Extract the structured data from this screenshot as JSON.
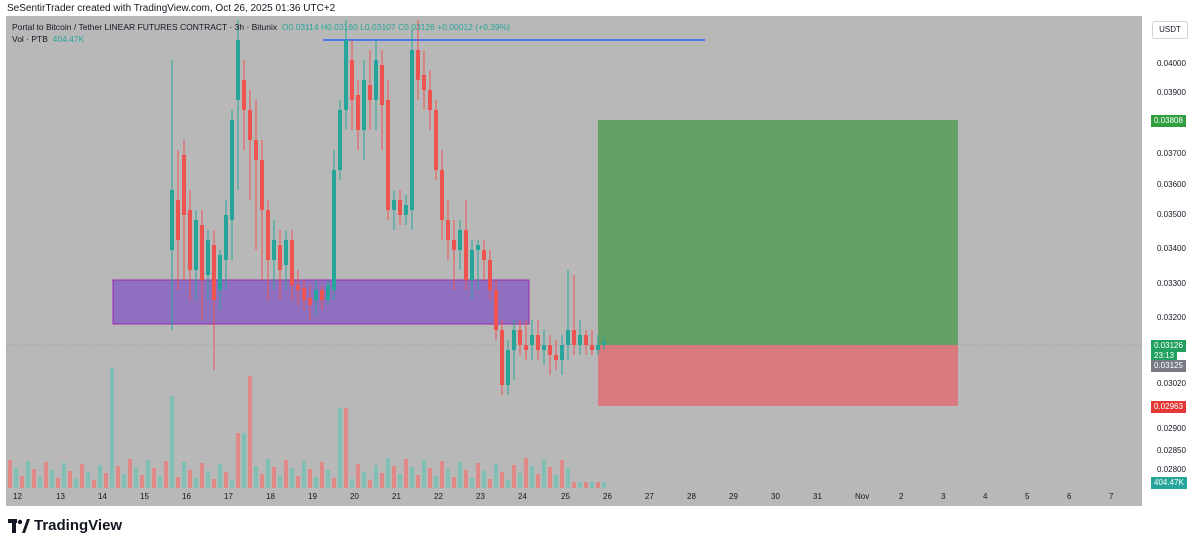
{
  "header": {
    "caption": "SeSentirTrader created with TradingView.com, Oct 26, 2025 01:36 UTC+2"
  },
  "legend": {
    "symbol_line": "Portal to Bitcoin / Tether LINEAR FUTURES CONTRACT · 3h · Bitunix",
    "ohlc": "O0.03114  H0.03160  L0.03107  C0.03126  +0.00012 (+0.39%)",
    "volume_label": "Vol · PTB",
    "volume_value": "404.47K"
  },
  "currency_button": "USDT",
  "price_axis": {
    "ticks": [
      "0.04000",
      "0.03900",
      "0.03700",
      "0.03600",
      "0.03500",
      "0.03400",
      "0.03300",
      "0.03200",
      "0.03020",
      "0.02900",
      "0.02850",
      "0.02800"
    ],
    "badges": {
      "target": {
        "text": "0.03808",
        "color": "#2e9e3e"
      },
      "current": {
        "text": "0.03126",
        "color": "#22a060"
      },
      "countdown": {
        "text": "23:13",
        "color": "#22a060"
      },
      "entry": {
        "text": "0.03125",
        "color": "#787b86"
      },
      "stop": {
        "text": "0.02963",
        "color": "#e53935"
      },
      "volume": {
        "text": "404.47K",
        "color": "#26a69a"
      }
    }
  },
  "time_axis": {
    "labels": [
      "12",
      "13",
      "14",
      "15",
      "16",
      "17",
      "18",
      "19",
      "20",
      "21",
      "22",
      "23",
      "24",
      "25",
      "26",
      "27",
      "28",
      "29",
      "30",
      "31",
      "Nov",
      "2",
      "3",
      "4",
      "5",
      "6",
      "7"
    ]
  },
  "footer": {
    "brand": "TradingView"
  },
  "colors": {
    "up": "#26a69a",
    "down": "#ef5350",
    "zone": "#8e6fc0",
    "profit": "#64a064",
    "loss": "#d97a7e",
    "level_line": "#2962ff"
  }
}
